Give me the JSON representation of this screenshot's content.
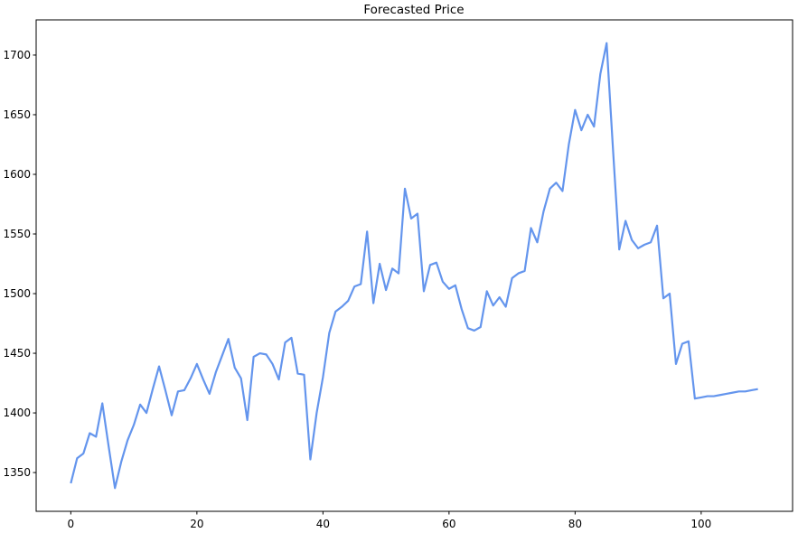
{
  "figure": {
    "background_color": "#ffffff",
    "spine_color": "#000000",
    "tick_color": "#000000"
  },
  "chart_data": {
    "type": "line",
    "title": "Forecasted Price",
    "xlabel": "",
    "ylabel": "",
    "grid": false,
    "legend": null,
    "x_is_index": true,
    "xlim": [
      -5.5,
      114.5
    ],
    "ylim": [
      1317.5,
      1729.5
    ],
    "x_ticks": [
      0,
      20,
      40,
      60,
      80,
      100
    ],
    "y_ticks": [
      1350,
      1400,
      1450,
      1500,
      1550,
      1600,
      1650,
      1700
    ],
    "series": [
      {
        "name": "forecasted-price",
        "color": "#6495ED",
        "line_width": 2.2,
        "x_start": 0,
        "x_step": 1,
        "values": [
          1341,
          1362,
          1366,
          1383,
          1380,
          1408,
          1372,
          1337,
          1359,
          1377,
          1390,
          1407,
          1400,
          1420,
          1439,
          1419,
          1398,
          1418,
          1419,
          1429,
          1441,
          1428,
          1416,
          1434,
          1448,
          1462,
          1438,
          1429,
          1394,
          1447,
          1450,
          1449,
          1441,
          1428,
          1459,
          1463,
          1433,
          1432,
          1361,
          1400,
          1430,
          1467,
          1485,
          1489,
          1494,
          1506,
          1508,
          1552,
          1492,
          1525,
          1503,
          1521,
          1517,
          1588,
          1563,
          1567,
          1502,
          1524,
          1526,
          1510,
          1504,
          1507,
          1487,
          1471,
          1469,
          1472,
          1502,
          1490,
          1497,
          1489,
          1513,
          1517,
          1519,
          1555,
          1543,
          1569,
          1588,
          1593,
          1586,
          1625,
          1654,
          1637,
          1650,
          1640,
          1684,
          1710,
          1622,
          1537,
          1561,
          1545,
          1538,
          1541,
          1543,
          1557,
          1496,
          1500,
          1441,
          1458,
          1460,
          1412,
          1413,
          1414,
          1414,
          1415,
          1416,
          1417,
          1418,
          1418,
          1419,
          1420
        ]
      }
    ]
  }
}
